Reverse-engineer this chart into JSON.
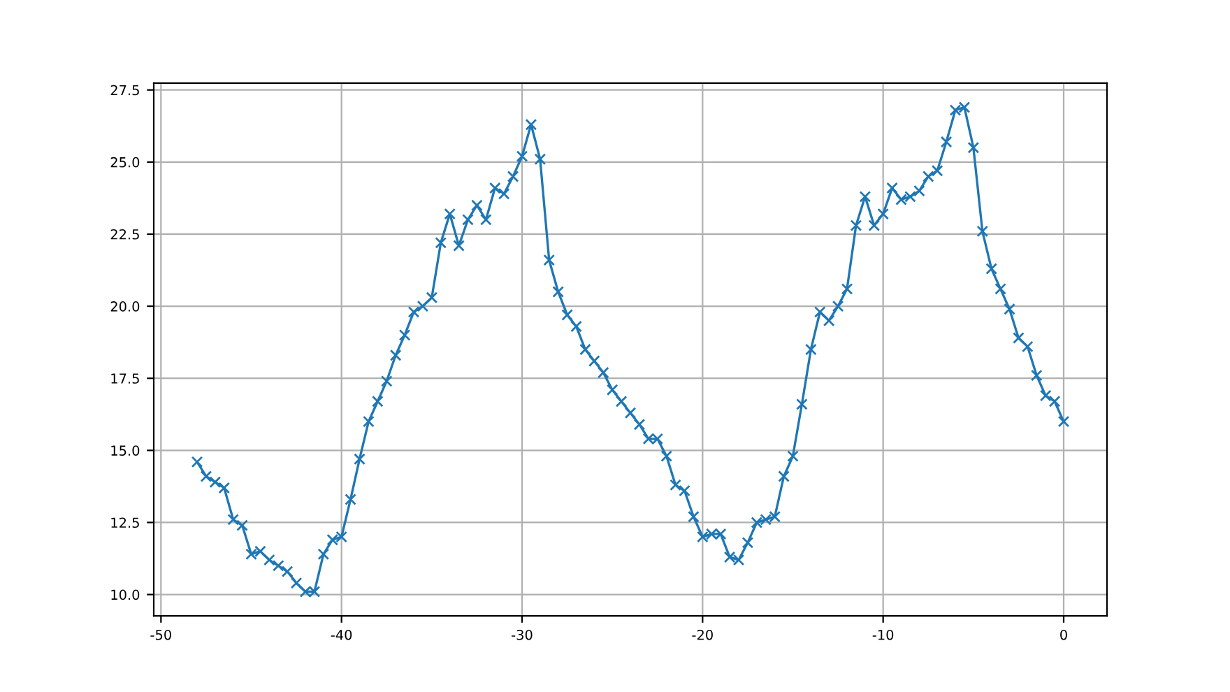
{
  "chart_data": {
    "type": "line",
    "x": [
      -48,
      -47.5,
      -47,
      -46.5,
      -46,
      -45.5,
      -45,
      -44.5,
      -44,
      -43.5,
      -43,
      -42.5,
      -42,
      -41.5,
      -41,
      -40.5,
      -40,
      -39.5,
      -39,
      -38.5,
      -38,
      -37.5,
      -37,
      -36.5,
      -36,
      -35.5,
      -35,
      -34.5,
      -34,
      -33.5,
      -33,
      -32.5,
      -32,
      -31.5,
      -31,
      -30.5,
      -30,
      -29.5,
      -29,
      -28.5,
      -28,
      -27.5,
      -27,
      -26.5,
      -26,
      -25.5,
      -25,
      -24.5,
      -24,
      -23.5,
      -23,
      -22.5,
      -22,
      -21.5,
      -21,
      -20.5,
      -20,
      -19.5,
      -19,
      -18.5,
      -18,
      -17.5,
      -17,
      -16.5,
      -16,
      -15.5,
      -15,
      -14.5,
      -14,
      -13.5,
      -13,
      -12.5,
      -12,
      -11.5,
      -11,
      -10.5,
      -10,
      -9.5,
      -9,
      -8.5,
      -8,
      -7.5,
      -7,
      -6.5,
      -6,
      -5.5,
      -5,
      -4.5,
      -4,
      -3.5,
      -3,
      -2.5,
      -2,
      -1.5,
      -1,
      -0.5,
      0
    ],
    "series": [
      {
        "color": "#1f77b4",
        "values": [
          14.6,
          14.1,
          13.9,
          13.7,
          12.6,
          12.4,
          11.4,
          11.5,
          11.2,
          11.0,
          10.8,
          10.4,
          10.1,
          10.1,
          11.4,
          11.9,
          12.0,
          13.3,
          14.7,
          16.0,
          16.7,
          17.4,
          18.3,
          19.0,
          19.8,
          20.0,
          20.3,
          22.2,
          23.2,
          22.1,
          23.0,
          23.5,
          23.0,
          24.1,
          23.9,
          24.5,
          25.2,
          26.3,
          25.1,
          21.6,
          20.5,
          19.7,
          19.3,
          18.5,
          18.1,
          17.7,
          17.1,
          16.7,
          16.3,
          15.9,
          15.4,
          15.4,
          14.8,
          13.8,
          13.6,
          12.7,
          12.0,
          12.1,
          12.1,
          11.3,
          11.2,
          11.8,
          12.5,
          12.6,
          12.7,
          14.1,
          14.8,
          16.6,
          18.5,
          19.8,
          19.5,
          20.0,
          20.6,
          22.8,
          23.8,
          22.8,
          23.2,
          24.1,
          23.7,
          23.8,
          24.0,
          24.5,
          24.7,
          25.7,
          26.8,
          26.9,
          25.5,
          22.6,
          21.3,
          20.6,
          19.9,
          18.9,
          18.6,
          17.6,
          16.9,
          16.7,
          16.0
        ]
      }
    ],
    "xlim": [
      -50.4,
      2.4
    ],
    "ylim": [
      9.26,
      27.74
    ],
    "xticks": [
      -50,
      -40,
      -30,
      -20,
      -10,
      0
    ],
    "yticks": [
      {
        "value": 10,
        "label": "10.0"
      },
      {
        "value": 12.5,
        "label": "12.5"
      },
      {
        "value": 15,
        "label": "15.0"
      },
      {
        "value": 17.5,
        "label": "17.5"
      },
      {
        "value": 20,
        "label": "20.0"
      },
      {
        "value": 22.5,
        "label": "22.5"
      },
      {
        "value": 25,
        "label": "25.0"
      },
      {
        "value": 27.5,
        "label": "27.5"
      }
    ],
    "grid": true,
    "marker": "cross",
    "line_style": "solid"
  }
}
